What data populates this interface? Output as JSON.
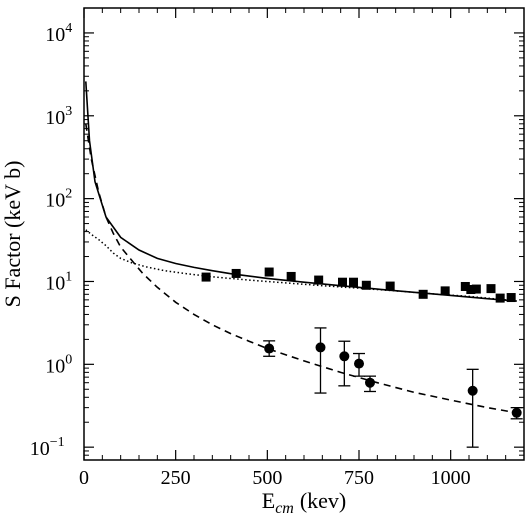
{
  "chart_data": {
    "type": "scatter",
    "xlabel": {
      "main": "E",
      "sub": "cm",
      "unit": "(kev)"
    },
    "ylabel": "S Factor (keV b)",
    "xlim": [
      0,
      1200
    ],
    "ylim": [
      0.07,
      20000
    ],
    "yscale": "log",
    "grid": false,
    "x_ticks": [
      {
        "value": 0,
        "label": "0"
      },
      {
        "value": 250,
        "label": "250"
      },
      {
        "value": 500,
        "label": "500"
      },
      {
        "value": 750,
        "label": "750"
      },
      {
        "value": 1000,
        "label": "1000"
      }
    ],
    "y_ticks": [
      {
        "value": 0.1,
        "mant": "10",
        "exp": "−1"
      },
      {
        "value": 1,
        "mant": "10",
        "exp": "0"
      },
      {
        "value": 10,
        "mant": "10",
        "exp": "1"
      },
      {
        "value": 100,
        "mant": "10",
        "exp": "2"
      },
      {
        "value": 1000,
        "mant": "10",
        "exp": "3"
      },
      {
        "value": 10000,
        "mant": "10",
        "exp": "4"
      }
    ],
    "series": [
      {
        "kind": "markers",
        "marker": "square",
        "points": [
          {
            "x": 333,
            "y": 11.3
          },
          {
            "x": 415,
            "y": 12.5
          },
          {
            "x": 505,
            "y": 13.0
          },
          {
            "x": 565,
            "y": 11.5
          },
          {
            "x": 640,
            "y": 10.4
          },
          {
            "x": 705,
            "y": 9.8
          },
          {
            "x": 735,
            "y": 9.8
          },
          {
            "x": 770,
            "y": 9.0
          },
          {
            "x": 835,
            "y": 8.8
          },
          {
            "x": 925,
            "y": 7.0
          },
          {
            "x": 985,
            "y": 7.7
          },
          {
            "x": 1040,
            "y": 8.7
          },
          {
            "x": 1055,
            "y": 8.0
          },
          {
            "x": 1070,
            "y": 8.1
          },
          {
            "x": 1110,
            "y": 8.2
          },
          {
            "x": 1135,
            "y": 6.3
          },
          {
            "x": 1165,
            "y": 6.4
          }
        ]
      },
      {
        "kind": "markers",
        "marker": "circle",
        "points": [
          {
            "x": 505,
            "y": 1.55,
            "ylo": 1.25,
            "yhi": 1.92
          },
          {
            "x": 645,
            "y": 1.6,
            "ylo": 0.45,
            "yhi": 2.75
          },
          {
            "x": 710,
            "y": 1.25,
            "ylo": 0.55,
            "yhi": 1.9
          },
          {
            "x": 750,
            "y": 1.02,
            "ylo": 0.72,
            "yhi": 1.35
          },
          {
            "x": 780,
            "y": 0.6,
            "ylo": 0.47,
            "yhi": 0.72
          },
          {
            "x": 1060,
            "y": 0.48,
            "ylo": 0.1,
            "yhi": 0.87
          },
          {
            "x": 1180,
            "y": 0.26,
            "ylo": 0.22,
            "yhi": 0.3
          }
        ]
      },
      {
        "kind": "line",
        "style": "solid",
        "points": [
          [
            5,
            2600
          ],
          [
            15,
            500
          ],
          [
            30,
            160
          ],
          [
            60,
            60
          ],
          [
            100,
            34
          ],
          [
            150,
            24
          ],
          [
            200,
            19
          ],
          [
            250,
            16.5
          ],
          [
            300,
            14.8
          ],
          [
            350,
            13.5
          ],
          [
            400,
            12.4
          ],
          [
            450,
            11.6
          ],
          [
            500,
            10.9
          ],
          [
            600,
            9.8
          ],
          [
            700,
            8.9
          ],
          [
            800,
            8.1
          ],
          [
            900,
            7.4
          ],
          [
            1000,
            6.8
          ],
          [
            1100,
            6.2
          ],
          [
            1180,
            5.8
          ]
        ]
      },
      {
        "kind": "line",
        "style": "dotted",
        "points": [
          [
            5,
            42
          ],
          [
            20,
            37
          ],
          [
            40,
            32
          ],
          [
            60,
            27
          ],
          [
            80,
            22
          ],
          [
            100,
            19
          ],
          [
            130,
            16.8
          ],
          [
            170,
            15
          ],
          [
            220,
            13.5
          ],
          [
            280,
            12.4
          ],
          [
            350,
            11.4
          ],
          [
            450,
            10.4
          ],
          [
            550,
            9.6
          ],
          [
            650,
            8.9
          ],
          [
            750,
            8.3
          ],
          [
            850,
            7.7
          ],
          [
            950,
            7.1
          ],
          [
            1050,
            6.6
          ],
          [
            1150,
            6.0
          ],
          [
            1180,
            5.8
          ]
        ]
      },
      {
        "kind": "line",
        "style": "dashed",
        "points": [
          [
            5,
            800
          ],
          [
            20,
            300
          ],
          [
            40,
            120
          ],
          [
            60,
            60
          ],
          [
            80,
            38
          ],
          [
            100,
            26
          ],
          [
            130,
            18
          ],
          [
            160,
            12.5
          ],
          [
            200,
            8.5
          ],
          [
            250,
            5.6
          ],
          [
            300,
            4.0
          ],
          [
            350,
            3.0
          ],
          [
            400,
            2.35
          ],
          [
            450,
            1.9
          ],
          [
            500,
            1.55
          ],
          [
            600,
            1.1
          ],
          [
            700,
            0.8
          ],
          [
            800,
            0.6
          ],
          [
            900,
            0.46
          ],
          [
            1000,
            0.37
          ],
          [
            1100,
            0.3
          ],
          [
            1180,
            0.26
          ]
        ]
      }
    ]
  }
}
